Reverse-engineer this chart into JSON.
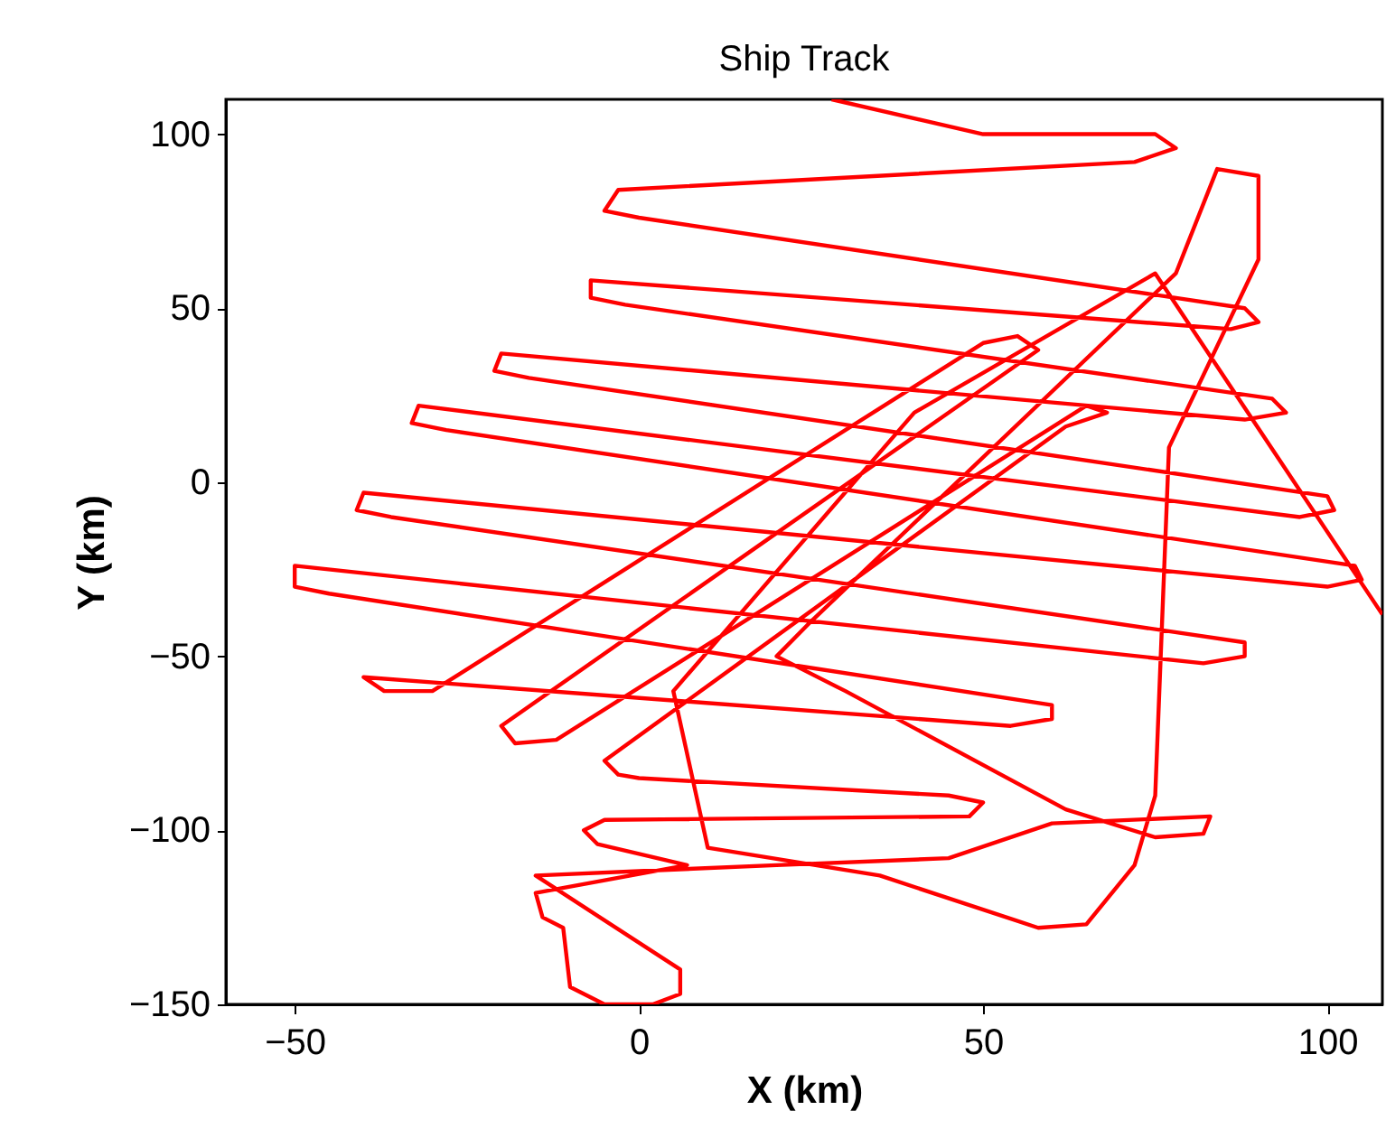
{
  "chart_data": {
    "type": "line",
    "title": "Ship Track",
    "xlabel": "X (km)",
    "ylabel": "Y (km)",
    "xlim": [
      -60,
      108
    ],
    "ylim": [
      -150,
      110
    ],
    "xticks": [
      -50,
      0,
      50,
      100
    ],
    "yticks": [
      -150,
      -100,
      -50,
      0,
      50,
      100
    ],
    "series": [
      {
        "color": "#ff0000",
        "x": [
          28,
          50,
          75,
          78,
          72,
          -3,
          -5,
          0,
          88,
          90,
          86,
          -7,
          -7,
          -2,
          92,
          94,
          88,
          -20,
          -21,
          -16,
          100,
          101,
          96,
          -32,
          -33,
          -28,
          104,
          105,
          100,
          -40,
          -41,
          -36,
          88,
          88,
          82,
          -50,
          -50,
          -45,
          60,
          60,
          54,
          -40,
          -37,
          -30,
          50,
          55,
          58,
          -20,
          -18,
          -12,
          65,
          68,
          62,
          -5,
          -3,
          0,
          45,
          50,
          48,
          -5,
          -8,
          -6,
          7,
          -15,
          -14,
          -11,
          -10,
          -5,
          2,
          6,
          6,
          -15,
          20,
          45,
          60,
          83,
          82,
          75,
          62,
          30,
          20,
          25,
          78,
          80,
          84,
          90,
          90,
          77,
          75,
          72,
          65,
          58,
          35,
          10,
          5,
          40,
          75,
          108
        ],
        "values": [
          110,
          100,
          100,
          96,
          92,
          84,
          78,
          76,
          50,
          46,
          44,
          58,
          53,
          51,
          24,
          20,
          18,
          37,
          32,
          30,
          -4,
          -8,
          -10,
          22,
          17,
          15,
          -24,
          -28,
          -30,
          -3,
          -8,
          -10,
          -46,
          -50,
          -52,
          -24,
          -30,
          -32,
          -64,
          -68,
          -70,
          -56,
          -60,
          -60,
          40,
          42,
          38,
          -70,
          -75,
          -74,
          22,
          20,
          16,
          -80,
          -84,
          -85,
          -90,
          -92,
          -96,
          -97,
          -100,
          -104,
          -110,
          -118,
          -125,
          -128,
          -145,
          -150,
          -150,
          -147,
          -140,
          -113,
          -110,
          -108,
          -98,
          -96,
          -101,
          -102,
          -94,
          -60,
          -50,
          -40,
          60,
          70,
          90,
          88,
          64,
          10,
          -90,
          -110,
          -127,
          -128,
          -113,
          -105,
          -60,
          20,
          60,
          -38
        ]
      }
    ]
  }
}
